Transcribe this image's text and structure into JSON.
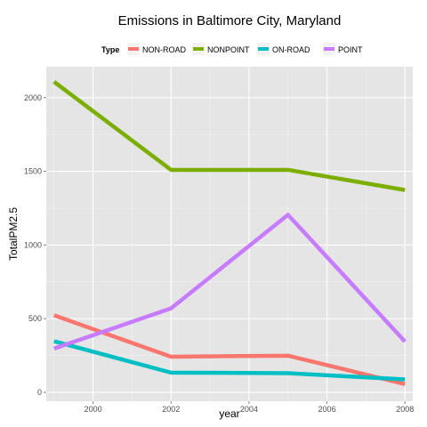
{
  "chart_data": {
    "type": "line",
    "title": "Emissions in Baltimore City, Maryland",
    "xlabel": "year",
    "ylabel": "TotalPM2.5",
    "legend_title": "Type",
    "legend_position": "top",
    "grid": true,
    "xlim": [
      1998.8,
      2008.2
    ],
    "ylim": [
      -60,
      2210
    ],
    "x": [
      1999,
      2002,
      2005,
      2008
    ],
    "x_ticks": [
      {
        "value": 2000,
        "label": "2000"
      },
      {
        "value": 2002,
        "label": "2002"
      },
      {
        "value": 2004,
        "label": "2004"
      },
      {
        "value": 2006,
        "label": "2006"
      },
      {
        "value": 2008,
        "label": "2008"
      }
    ],
    "y_ticks": [
      {
        "value": 0,
        "label": "0"
      },
      {
        "value": 500,
        "label": "500"
      },
      {
        "value": 1000,
        "label": "1000"
      },
      {
        "value": 1500,
        "label": "1500"
      },
      {
        "value": 2000,
        "label": "2000"
      }
    ],
    "series": [
      {
        "name": "NON-ROAD",
        "color": "#F8766D",
        "values": [
          523,
          242,
          249,
          56
        ]
      },
      {
        "name": "NONPOINT",
        "color": "#7CAE00",
        "values": [
          2108,
          1510,
          1510,
          1373
        ]
      },
      {
        "name": "ON-ROAD",
        "color": "#00BFC4",
        "values": [
          347,
          134,
          130,
          88
        ]
      },
      {
        "name": "POINT",
        "color": "#C77CFF",
        "values": [
          297,
          570,
          1205,
          345
        ]
      }
    ]
  }
}
